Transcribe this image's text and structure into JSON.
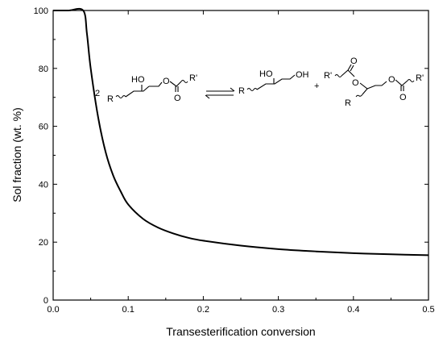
{
  "chart_data": {
    "type": "line",
    "title": "",
    "xlabel": "Transesterification conversion",
    "ylabel": "Sol fraction (wt. %)",
    "xlim": [
      0.0,
      0.5
    ],
    "ylim": [
      0,
      100
    ],
    "xticks": [
      0.0,
      0.1,
      0.2,
      0.3,
      0.4,
      0.5
    ],
    "xtick_labels": [
      "0.0",
      "0.1",
      "0.2",
      "0.3",
      "0.4",
      "0.5"
    ],
    "yticks": [
      0,
      20,
      40,
      60,
      80,
      100
    ],
    "ytick_labels": [
      "0",
      "20",
      "40",
      "60",
      "80",
      "100"
    ],
    "grid": false,
    "legend": "none",
    "series": [
      {
        "color": "#000000",
        "x": [
          0.0,
          0.02,
          0.04,
          0.045,
          0.05,
          0.06,
          0.07,
          0.08,
          0.09,
          0.1,
          0.12,
          0.14,
          0.16,
          0.18,
          0.2,
          0.25,
          0.3,
          0.35,
          0.4,
          0.45,
          0.5
        ],
        "y": [
          100,
          100,
          100,
          92,
          80,
          63,
          51,
          43,
          37.5,
          33,
          28,
          25,
          23,
          21.5,
          20.5,
          18.8,
          17.6,
          16.8,
          16.2,
          15.8,
          15.5
        ]
      }
    ]
  },
  "scheme": {
    "coefficient": "2",
    "plus": "+",
    "r": "R",
    "r_prime": "R'",
    "ho": "HO",
    "oh": "OH",
    "o": "O"
  }
}
